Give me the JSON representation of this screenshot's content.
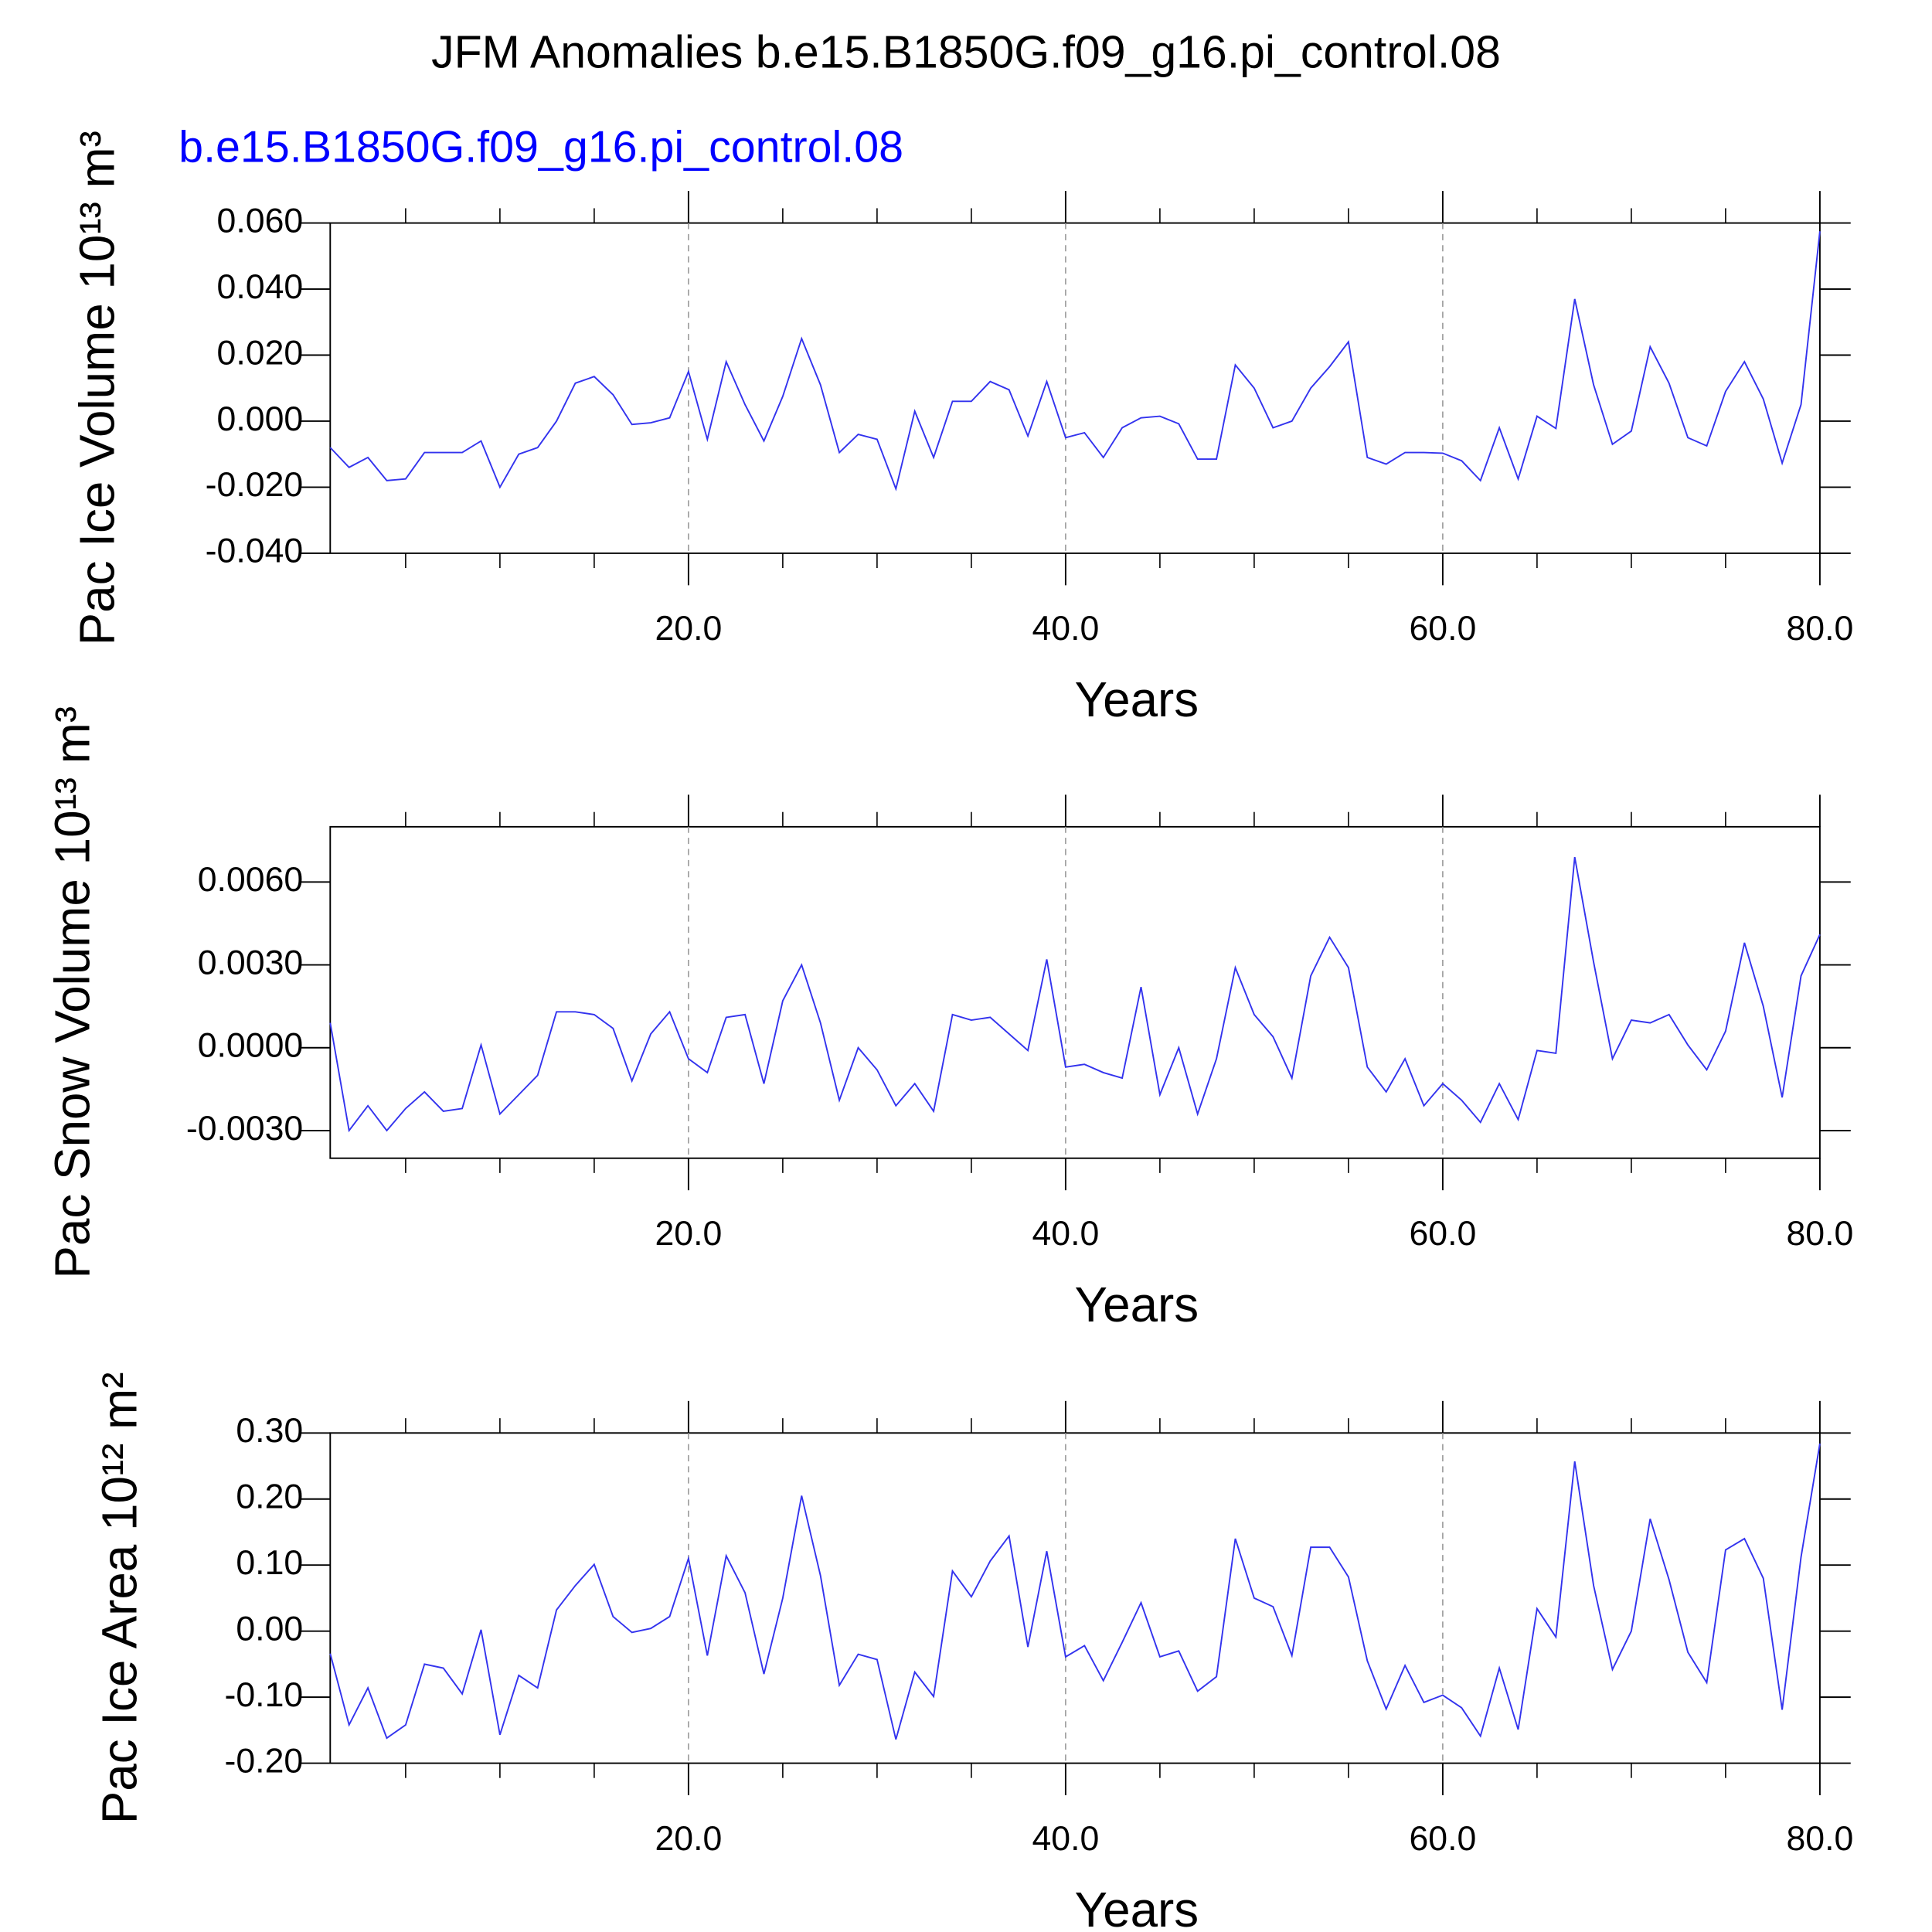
{
  "chart_data": [
    {
      "type": "line",
      "title": "JFM Anomalies b.e15.B1850G.f09_g16.pi_control.08",
      "subtitle": "b.e15.B1850G.f09_g16.pi_control.08",
      "subtitle_color": "#0000ff",
      "ylabel": "Pac Ice Volume 10¹³ m³",
      "xlabel": "Years",
      "color": "#3333ee",
      "grid": true,
      "xlim": [
        1,
        80
      ],
      "xticks": [
        {
          "value": 20,
          "label": "20.0"
        },
        {
          "value": 40,
          "label": "40.0"
        },
        {
          "value": 60,
          "label": "60.0"
        },
        {
          "value": 80,
          "label": "80.0"
        }
      ],
      "xminorticks": [
        5,
        10,
        15,
        25,
        30,
        35,
        45,
        50,
        55,
        65,
        70,
        75
      ],
      "ylim": [
        -0.04,
        0.06
      ],
      "yticks": [
        {
          "value": -0.04,
          "label": "-0.040"
        },
        {
          "value": -0.02,
          "label": "-0.020"
        },
        {
          "value": 0,
          "label": "0.000"
        },
        {
          "value": 0.02,
          "label": "0.020"
        },
        {
          "value": 0.04,
          "label": "0.040"
        },
        {
          "value": 0.06,
          "label": "0.060"
        }
      ],
      "x": [
        1,
        2,
        3,
        4,
        5,
        6,
        7,
        8,
        9,
        10,
        11,
        12,
        13,
        14,
        15,
        16,
        17,
        18,
        19,
        20,
        21,
        22,
        23,
        24,
        25,
        26,
        27,
        28,
        29,
        30,
        31,
        32,
        33,
        34,
        35,
        36,
        37,
        38,
        39,
        40,
        41,
        42,
        43,
        44,
        45,
        46,
        47,
        48,
        49,
        50,
        51,
        52,
        53,
        54,
        55,
        56,
        57,
        58,
        59,
        60,
        61,
        62,
        63,
        64,
        65,
        66,
        67,
        68,
        69,
        70,
        71,
        72,
        73,
        74,
        75,
        76,
        77,
        78,
        79,
        80
      ],
      "values": [
        -0.008,
        -0.014,
        -0.011,
        -0.018,
        -0.0175,
        -0.0095,
        -0.0095,
        -0.0095,
        -0.006,
        -0.02,
        -0.01,
        -0.008,
        0.0,
        0.0115,
        0.0135,
        0.008,
        -0.001,
        -0.0005,
        0.001,
        0.015,
        -0.0055,
        0.018,
        0.005,
        -0.006,
        0.0075,
        0.025,
        0.011,
        -0.0095,
        -0.004,
        -0.0055,
        -0.0205,
        0.003,
        -0.011,
        0.006,
        0.006,
        0.012,
        0.0095,
        -0.0045,
        0.012,
        -0.005,
        -0.0035,
        -0.011,
        -0.002,
        0.001,
        0.0015,
        -0.0008,
        -0.0115,
        -0.0115,
        0.017,
        0.01,
        -0.002,
        0.0,
        0.01,
        0.0165,
        0.024,
        -0.011,
        -0.013,
        -0.0095,
        -0.0095,
        -0.0097,
        -0.012,
        -0.018,
        -0.002,
        -0.0175,
        0.0015,
        -0.0022,
        0.037,
        0.011,
        -0.007,
        -0.003,
        0.0225,
        0.0115,
        -0.005,
        -0.0075,
        0.009,
        0.018,
        0.0067,
        -0.0127,
        0.005,
        0.0575
      ]
    },
    {
      "type": "line",
      "ylabel": "Pac Snow Volume 10¹³ m³",
      "xlabel": "Years",
      "color": "#3333ee",
      "grid": true,
      "xlim": [
        1,
        80
      ],
      "xticks": [
        {
          "value": 20,
          "label": "20.0"
        },
        {
          "value": 40,
          "label": "40.0"
        },
        {
          "value": 60,
          "label": "60.0"
        },
        {
          "value": 80,
          "label": "80.0"
        }
      ],
      "xminorticks": [
        5,
        10,
        15,
        25,
        30,
        35,
        45,
        50,
        55,
        65,
        70,
        75
      ],
      "ylim": [
        -0.004,
        0.008
      ],
      "yticks": [
        {
          "value": -0.003,
          "label": "-0.0030"
        },
        {
          "value": 0,
          "label": "0.0000"
        },
        {
          "value": 0.003,
          "label": "0.0030"
        },
        {
          "value": 0.006,
          "label": "0.0060"
        }
      ],
      "x": [
        1,
        2,
        3,
        4,
        5,
        6,
        7,
        8,
        9,
        10,
        11,
        12,
        13,
        14,
        15,
        16,
        17,
        18,
        19,
        20,
        21,
        22,
        23,
        24,
        25,
        26,
        27,
        28,
        29,
        30,
        31,
        32,
        33,
        34,
        35,
        36,
        37,
        38,
        39,
        40,
        41,
        42,
        43,
        44,
        45,
        46,
        47,
        48,
        49,
        50,
        51,
        52,
        53,
        54,
        55,
        56,
        57,
        58,
        59,
        60,
        61,
        62,
        63,
        64,
        65,
        66,
        67,
        68,
        69,
        70,
        71,
        72,
        73,
        74,
        75,
        76,
        77,
        78,
        79,
        80
      ],
      "values": [
        0.0009,
        -0.003,
        -0.0021,
        -0.003,
        -0.0022,
        -0.0016,
        -0.0023,
        -0.0022,
        0.0001,
        -0.0024,
        -0.0017,
        -0.001,
        0.0013,
        0.0013,
        0.0012,
        0.0007,
        -0.0012,
        0.0005,
        0.0013,
        -0.0004,
        -0.0009,
        0.0011,
        0.0012,
        -0.0013,
        0.0017,
        0.003,
        0.0009,
        -0.0019,
        0.0,
        -0.0008,
        -0.0021,
        -0.0013,
        -0.0023,
        0.0012,
        0.001,
        0.0011,
        0.0005,
        -0.0001,
        0.0032,
        -0.0007,
        -0.0006,
        -0.0009,
        -0.0011,
        0.0022,
        -0.0017,
        0.0,
        -0.0024,
        -0.0004,
        0.0029,
        0.0012,
        0.0004,
        -0.0011,
        0.0026,
        0.004,
        0.0029,
        -0.0007,
        -0.0016,
        -0.0004,
        -0.0021,
        -0.0013,
        -0.0019,
        -0.0027,
        -0.0013,
        -0.0026,
        -0.0001,
        -0.0002,
        0.0069,
        0.0031,
        -0.0004,
        0.001,
        0.0009,
        0.0012,
        0.0001,
        -0.0008,
        0.0006,
        0.0038,
        0.0015,
        -0.0018,
        0.0026,
        0.0041
      ]
    },
    {
      "type": "line",
      "ylabel": "Pac Ice Area 10¹² m²",
      "xlabel": "Years",
      "color": "#3333ee",
      "grid": true,
      "xlim": [
        1,
        80
      ],
      "xticks": [
        {
          "value": 20,
          "label": "20.0"
        },
        {
          "value": 40,
          "label": "40.0"
        },
        {
          "value": 60,
          "label": "60.0"
        },
        {
          "value": 80,
          "label": "80.0"
        }
      ],
      "xminorticks": [
        5,
        10,
        15,
        25,
        30,
        35,
        45,
        50,
        55,
        65,
        70,
        75
      ],
      "ylim": [
        -0.2,
        0.3
      ],
      "yticks": [
        {
          "value": -0.2,
          "label": "-0.20"
        },
        {
          "value": -0.1,
          "label": "-0.10"
        },
        {
          "value": 0,
          "label": "0.00"
        },
        {
          "value": 0.1,
          "label": "0.10"
        },
        {
          "value": 0.2,
          "label": "0.20"
        },
        {
          "value": 0.3,
          "label": "0.30"
        }
      ],
      "x": [
        1,
        2,
        3,
        4,
        5,
        6,
        7,
        8,
        9,
        10,
        11,
        12,
        13,
        14,
        15,
        16,
        17,
        18,
        19,
        20,
        21,
        22,
        23,
        24,
        25,
        26,
        27,
        28,
        29,
        30,
        31,
        32,
        33,
        34,
        35,
        36,
        37,
        38,
        39,
        40,
        41,
        42,
        43,
        44,
        45,
        46,
        47,
        48,
        49,
        50,
        51,
        52,
        53,
        54,
        55,
        56,
        57,
        58,
        59,
        60,
        61,
        62,
        63,
        64,
        65,
        66,
        67,
        68,
        69,
        70,
        71,
        72,
        73,
        74,
        75,
        76,
        77,
        78,
        79,
        80
      ],
      "values": [
        -0.034,
        -0.142,
        -0.086,
        -0.162,
        -0.142,
        -0.05,
        -0.056,
        -0.095,
        0.002,
        -0.157,
        -0.067,
        -0.086,
        0.032,
        0.069,
        0.101,
        0.022,
        -0.002,
        0.004,
        0.022,
        0.11,
        -0.037,
        0.114,
        0.058,
        -0.065,
        0.05,
        0.205,
        0.084,
        -0.082,
        -0.035,
        -0.043,
        -0.164,
        -0.062,
        -0.099,
        0.091,
        0.052,
        0.106,
        0.144,
        -0.024,
        0.121,
        -0.039,
        -0.022,
        -0.075,
        -0.017,
        0.043,
        -0.039,
        -0.03,
        -0.091,
        -0.069,
        0.14,
        0.05,
        0.037,
        -0.037,
        0.127,
        0.127,
        0.082,
        -0.045,
        -0.118,
        -0.052,
        -0.108,
        -0.097,
        -0.116,
        -0.159,
        -0.056,
        -0.149,
        0.034,
        -0.009,
        0.257,
        0.069,
        -0.058,
        0.0,
        0.17,
        0.078,
        -0.032,
        -0.078,
        0.123,
        0.14,
        0.08,
        -0.119,
        0.112,
        0.284
      ]
    }
  ]
}
